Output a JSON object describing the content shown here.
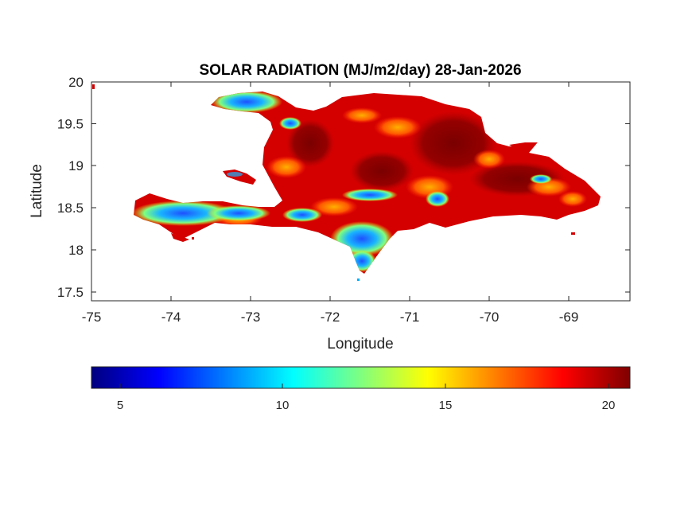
{
  "figure": {
    "title": "SOLAR RADIATION (MJ/m2/day) 28-Jan-2026",
    "xlabel": "Longitude",
    "ylabel": "Latitude"
  },
  "axes": {
    "x_ticks": [
      "-75",
      "-74",
      "-73",
      "-72",
      "-71",
      "-70",
      "-69"
    ],
    "y_ticks": [
      "20",
      "19.5",
      "19",
      "18.5",
      "18",
      "17.5"
    ],
    "xlim": [
      -75,
      -68.2
    ],
    "ylim": [
      17.4,
      20
    ]
  },
  "colorbar": {
    "colormap": "jet",
    "range": [
      4.0,
      20.6
    ],
    "ticks": [
      "5",
      "10",
      "15",
      "20"
    ],
    "colors": [
      "#00007f",
      "#0000ff",
      "#007fff",
      "#00ffff",
      "#7fff7f",
      "#ffff00",
      "#ff7f00",
      "#ff0000",
      "#7f0000"
    ]
  },
  "map": {
    "region": "Hispaniola (Haiti and Dominican Republic)",
    "dominant_color": "#d40000",
    "high_color": "#8b0000",
    "low_color": "#1e64ff"
  }
}
